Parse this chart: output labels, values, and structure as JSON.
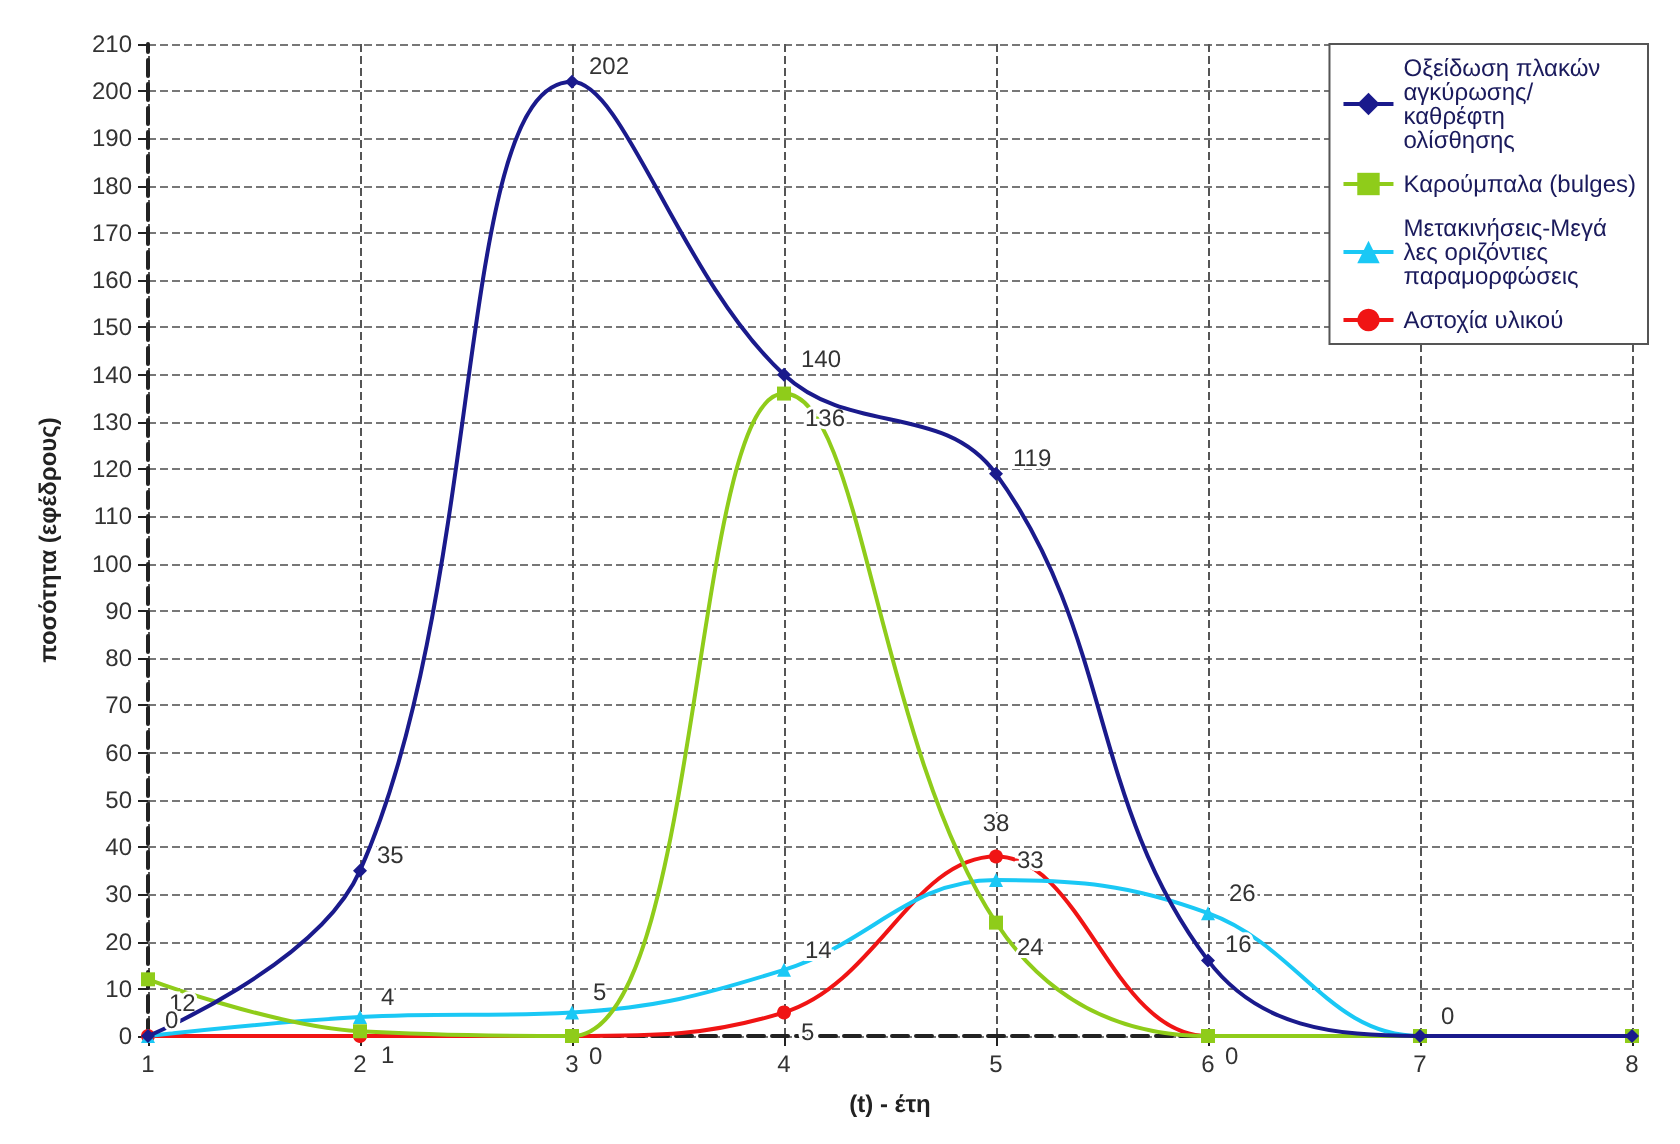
{
  "chart_data": {
    "type": "line",
    "xlabel": "(t) - έτη",
    "ylabel": "ποσότητα (εφέδρους)",
    "x": [
      1,
      2,
      3,
      4,
      5,
      6,
      7,
      8
    ],
    "xlim": [
      1,
      8
    ],
    "xticks": [
      1,
      2,
      3,
      4,
      5,
      6,
      7,
      8
    ],
    "ylim": [
      0,
      210
    ],
    "yticks": [
      0,
      10,
      20,
      30,
      40,
      50,
      60,
      70,
      80,
      90,
      100,
      110,
      120,
      130,
      140,
      150,
      160,
      170,
      180,
      190,
      200,
      210
    ],
    "grid": true,
    "legend": "top right",
    "data_labels": true,
    "series": [
      {
        "name": "Οξείδωση πλακών αγκύρωσης/καθρέφτη ολίσθησης",
        "color": "#1a1a8c",
        "marker": "diamond",
        "values": [
          0,
          35,
          202,
          140,
          119,
          16,
          0,
          0
        ],
        "value_labels": [
          "0",
          "35",
          "202",
          "140",
          "119",
          "16",
          null,
          null
        ]
      },
      {
        "name": "Καρούμπαλα (bulges)",
        "color": "#8fcc1a",
        "marker": "square",
        "values": [
          12,
          1,
          0,
          136,
          24,
          0,
          0,
          0
        ],
        "value_labels": [
          "12",
          "1",
          null,
          "136",
          "24",
          null,
          null,
          null
        ]
      },
      {
        "name": "Μετακινήσεις-Μεγάλες οριζόντιες παραμορφώσεις",
        "color": "#1ac8f5",
        "marker": "triangle",
        "values": [
          0,
          4,
          5,
          14,
          33,
          26,
          0,
          0
        ],
        "value_labels": [
          null,
          "4",
          "5",
          "14",
          "33",
          "26",
          "0",
          null
        ]
      },
      {
        "name": "Αστοχία υλικού",
        "color": "#f01414",
        "marker": "circle",
        "values": [
          0,
          0,
          0,
          5,
          38,
          0,
          0,
          0
        ],
        "value_labels": [
          null,
          null,
          "0",
          "5",
          "38",
          "0",
          null,
          null
        ]
      }
    ]
  }
}
